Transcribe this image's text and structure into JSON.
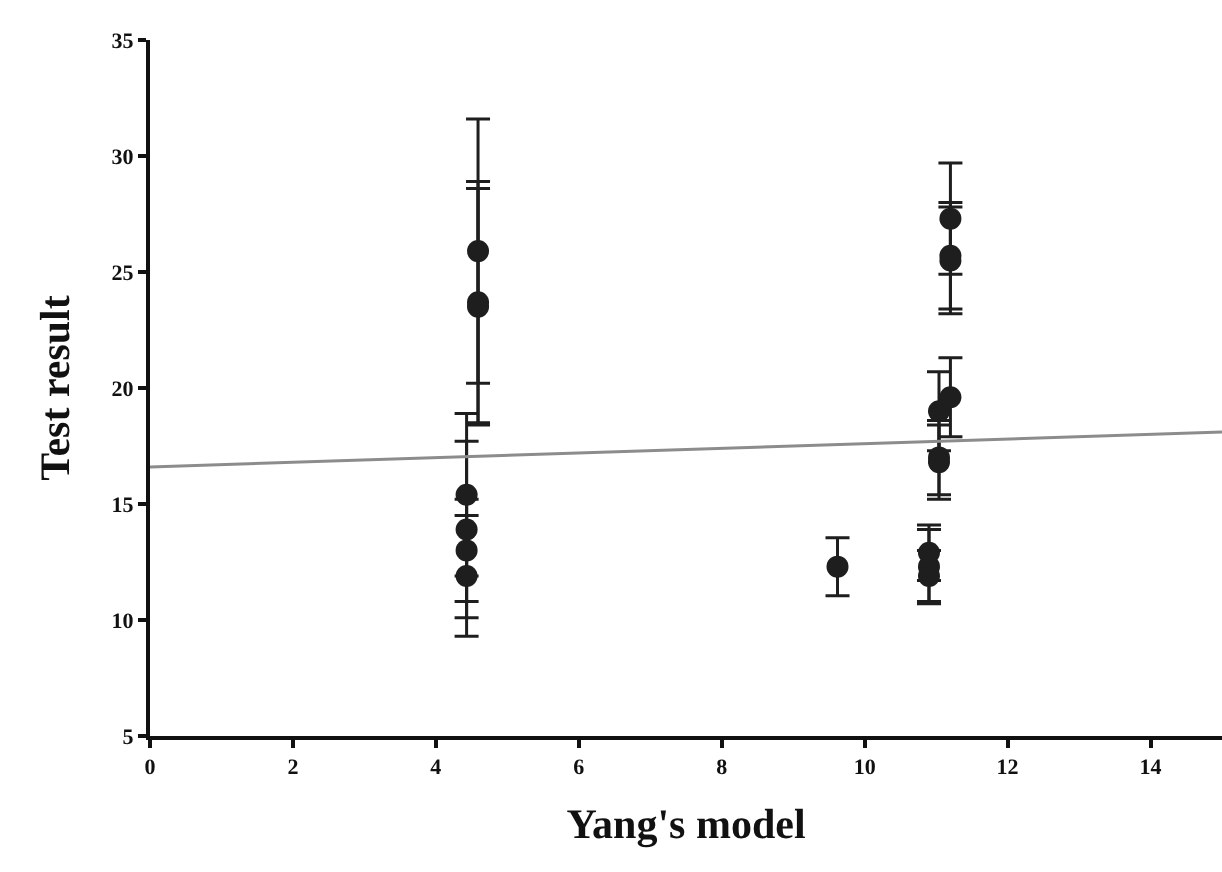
{
  "chart_data": {
    "type": "scatter",
    "xlabel": "Yang's model",
    "ylabel": "Test result",
    "xlim": [
      0,
      15
    ],
    "xticks": [
      0,
      2,
      4,
      6,
      8,
      10,
      12,
      14
    ],
    "ylim": [
      5,
      35
    ],
    "yticks": [
      5,
      10,
      15,
      20,
      25,
      30,
      35
    ],
    "series": [
      {
        "color": "#1e1e1e",
        "marker": "circle",
        "x": [
          4.43,
          4.43,
          4.43,
          4.43,
          4.59,
          4.59,
          4.59,
          9.62,
          10.9,
          10.9,
          10.9,
          11.04,
          11.04,
          11.04,
          11.2,
          11.2,
          11.2,
          11.2
        ],
        "values": [
          15.4,
          13.9,
          13.0,
          11.9,
          25.9,
          23.7,
          23.5,
          12.3,
          12.9,
          12.3,
          11.9,
          19.0,
          17.0,
          16.8,
          27.3,
          25.7,
          25.5,
          19.6
        ],
        "errors": [
          3.5,
          3.8,
          2.2,
          2.6,
          5.7,
          5.2,
          5.1,
          1.25,
          1.2,
          1.6,
          1.1,
          1.7,
          1.6,
          1.6,
          2.4,
          2.3,
          2.3,
          1.7
        ]
      },
      {
        "type": "line",
        "color": "#8c8c8c",
        "line_style": "solid",
        "x": [
          0,
          15
        ],
        "values": [
          16.6,
          18.1
        ]
      }
    ]
  }
}
